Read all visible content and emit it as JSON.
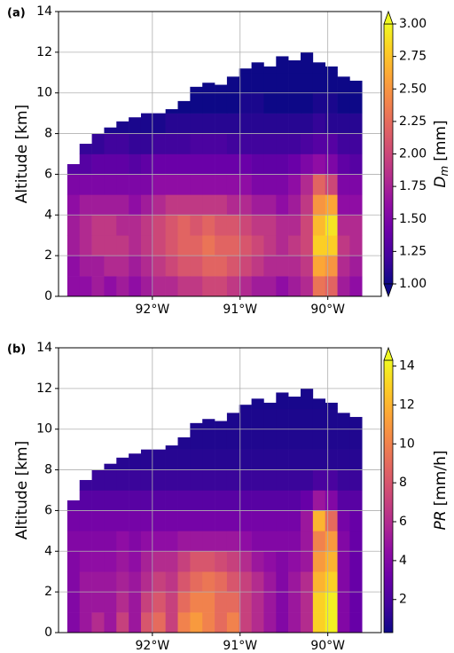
{
  "chart_data": [
    {
      "type": "heatmap",
      "panel_label": "(a)",
      "ylabel": "Altitude [km]",
      "x": [
        -92.9,
        -92.76,
        -92.62,
        -92.48,
        -92.34,
        -92.2,
        -92.06,
        -91.92,
        -91.78,
        -91.64,
        -91.5,
        -91.36,
        -91.22,
        -91.08,
        -90.94,
        -90.8,
        -90.66,
        -90.52,
        -90.38,
        -90.24,
        -90.1,
        -89.96,
        -89.82,
        -89.68
      ],
      "y": [
        0,
        1,
        2,
        3,
        4,
        5,
        6,
        7,
        8,
        9,
        10,
        11,
        12
      ],
      "tops": [
        6.5,
        7.5,
        8.0,
        8.3,
        8.6,
        8.8,
        9.0,
        9.0,
        9.2,
        9.6,
        10.3,
        10.5,
        10.4,
        10.8,
        11.2,
        11.5,
        11.3,
        11.8,
        11.6,
        12.0,
        11.5,
        11.3,
        10.8,
        10.6
      ],
      "z": [
        [
          1.6,
          1.6,
          1.7,
          1.7,
          1.6,
          1.5,
          1.3,
          null,
          null,
          null,
          null,
          null,
          null
        ],
        [
          1.6,
          1.7,
          1.8,
          1.8,
          1.7,
          1.5,
          1.3,
          1.15,
          null,
          null,
          null,
          null,
          null
        ],
        [
          1.7,
          1.7,
          1.9,
          1.9,
          1.7,
          1.5,
          1.35,
          1.15,
          null,
          null,
          null,
          null,
          null
        ],
        [
          1.6,
          1.8,
          1.9,
          1.9,
          1.7,
          1.5,
          1.35,
          1.2,
          1.05,
          null,
          null,
          null,
          null
        ],
        [
          1.7,
          1.8,
          1.9,
          1.8,
          1.7,
          1.5,
          1.35,
          1.2,
          1.05,
          null,
          null,
          null,
          null
        ],
        [
          1.6,
          1.7,
          1.8,
          1.8,
          1.6,
          1.5,
          1.3,
          1.15,
          1.05,
          null,
          null,
          null,
          null
        ],
        [
          1.7,
          1.8,
          1.9,
          1.9,
          1.7,
          1.5,
          1.35,
          1.15,
          1.05,
          null,
          null,
          null,
          null
        ],
        [
          1.8,
          1.9,
          2.0,
          2.0,
          1.8,
          1.6,
          1.4,
          1.2,
          1.05,
          null,
          null,
          null,
          null
        ],
        [
          1.8,
          2.0,
          2.1,
          2.1,
          1.9,
          1.6,
          1.4,
          1.2,
          1.1,
          1.0,
          null,
          null,
          null
        ],
        [
          1.9,
          2.1,
          2.2,
          2.2,
          1.9,
          1.6,
          1.4,
          1.2,
          1.1,
          1.0,
          null,
          null,
          null
        ],
        [
          1.9,
          2.1,
          2.2,
          2.1,
          1.9,
          1.6,
          1.4,
          1.25,
          1.1,
          1.0,
          1.0,
          null,
          null
        ],
        [
          2.0,
          2.2,
          2.3,
          2.2,
          1.9,
          1.6,
          1.4,
          1.25,
          1.1,
          1.0,
          1.0,
          null,
          null
        ],
        [
          2.0,
          2.2,
          2.2,
          2.1,
          1.9,
          1.6,
          1.4,
          1.25,
          1.1,
          1.0,
          1.0,
          null,
          null
        ],
        [
          1.9,
          2.1,
          2.2,
          2.1,
          1.8,
          1.6,
          1.4,
          1.2,
          1.1,
          1.0,
          1.0,
          null,
          null
        ],
        [
          1.8,
          2.0,
          2.1,
          2.0,
          1.8,
          1.6,
          1.4,
          1.2,
          1.1,
          1.05,
          1.0,
          1.0,
          null
        ],
        [
          1.7,
          1.9,
          2.0,
          1.9,
          1.7,
          1.5,
          1.35,
          1.2,
          1.1,
          1.05,
          1.0,
          1.0,
          null
        ],
        [
          1.7,
          1.8,
          1.9,
          1.9,
          1.7,
          1.5,
          1.35,
          1.2,
          1.1,
          1.0,
          1.0,
          1.0,
          null
        ],
        [
          1.6,
          1.8,
          1.8,
          1.8,
          1.6,
          1.5,
          1.35,
          1.2,
          1.1,
          1.0,
          1.0,
          1.0,
          null
        ],
        [
          1.7,
          1.8,
          1.9,
          1.8,
          1.7,
          1.6,
          1.4,
          1.2,
          1.1,
          1.0,
          1.0,
          1.0,
          null
        ],
        [
          1.8,
          1.9,
          2.0,
          2.0,
          1.9,
          1.8,
          1.5,
          1.25,
          1.1,
          1.0,
          1.0,
          1.0,
          null
        ],
        [
          2.3,
          2.6,
          2.8,
          2.7,
          2.5,
          2.2,
          1.6,
          1.3,
          1.15,
          1.05,
          1.0,
          1.0,
          null
        ],
        [
          2.2,
          2.5,
          2.8,
          2.9,
          2.6,
          2.0,
          1.5,
          1.3,
          1.1,
          1.05,
          1.0,
          1.0,
          null
        ],
        [
          1.7,
          1.8,
          1.9,
          1.8,
          1.6,
          1.5,
          1.35,
          1.2,
          1.1,
          1.0,
          1.0,
          null,
          null
        ],
        [
          1.6,
          1.7,
          1.8,
          1.8,
          1.6,
          1.5,
          1.3,
          1.2,
          1.1,
          1.0,
          1.0,
          null,
          null
        ]
      ],
      "xlim": [
        -93.07,
        -89.39
      ],
      "xticks": [
        {
          "value": -92,
          "label": "92°W"
        },
        {
          "value": -91,
          "label": "91°W"
        },
        {
          "value": -90,
          "label": "90°W"
        }
      ],
      "ylim": [
        0,
        14
      ],
      "yticks": [
        0,
        2,
        4,
        6,
        8,
        10,
        12,
        14
      ],
      "grid": true,
      "colormap": "plasma",
      "clim": [
        1,
        3
      ],
      "extend": "both",
      "colorbar_label": {
        "symbol": "D",
        "subscript": "m",
        "unit": "[mm]"
      },
      "colorbar_ticks": [
        {
          "value": 1,
          "label": "1.00"
        },
        {
          "value": 1.25,
          "label": "1.25"
        },
        {
          "value": 1.5,
          "label": "1.50"
        },
        {
          "value": 1.75,
          "label": "1.75"
        },
        {
          "value": 2,
          "label": "2.00"
        },
        {
          "value": 2.25,
          "label": "2.25"
        },
        {
          "value": 2.5,
          "label": "2.50"
        },
        {
          "value": 2.75,
          "label": "2.75"
        },
        {
          "value": 3,
          "label": "3.00"
        }
      ]
    },
    {
      "type": "heatmap",
      "panel_label": "(b)",
      "ylabel": "Altitude [km]",
      "x": [
        -92.9,
        -92.76,
        -92.62,
        -92.48,
        -92.34,
        -92.2,
        -92.06,
        -91.92,
        -91.78,
        -91.64,
        -91.5,
        -91.36,
        -91.22,
        -91.08,
        -90.94,
        -90.8,
        -90.66,
        -90.52,
        -90.38,
        -90.24,
        -90.1,
        -89.96,
        -89.82,
        -89.68
      ],
      "y": [
        0,
        1,
        2,
        3,
        4,
        5,
        6,
        7,
        8,
        9,
        10,
        11,
        12
      ],
      "tops": [
        6.5,
        7.5,
        8.0,
        8.3,
        8.6,
        8.8,
        9.0,
        9.0,
        9.2,
        9.6,
        10.3,
        10.5,
        10.4,
        10.8,
        11.2,
        11.5,
        11.3,
        11.8,
        11.6,
        12.0,
        11.5,
        11.3,
        10.8,
        10.6
      ],
      "z": [
        [
          4,
          4,
          4,
          4,
          4,
          3.5,
          2.5,
          null,
          null,
          null,
          null,
          null,
          null
        ],
        [
          5,
          5,
          5,
          4.5,
          4,
          3.5,
          2.5,
          1.5,
          null,
          null,
          null,
          null,
          null
        ],
        [
          6,
          5,
          5,
          4.5,
          4,
          3.5,
          2.5,
          1.5,
          null,
          null,
          null,
          null,
          null
        ],
        [
          5,
          5,
          5,
          4.5,
          4,
          3.5,
          2.5,
          1.5,
          1,
          null,
          null,
          null,
          null
        ],
        [
          7,
          6,
          5.5,
          5,
          4.5,
          3.5,
          2.5,
          1.5,
          1,
          null,
          null,
          null,
          null
        ],
        [
          5,
          5,
          5,
          4.5,
          4,
          3.5,
          2.5,
          1.5,
          1,
          null,
          null,
          null,
          null
        ],
        [
          8,
          7,
          6,
          5.5,
          4.5,
          3.5,
          2.5,
          1.5,
          1,
          null,
          null,
          null,
          null
        ],
        [
          9,
          8,
          7,
          6,
          4.5,
          3.5,
          2.5,
          1.5,
          1,
          null,
          null,
          null,
          null
        ],
        [
          7,
          7,
          6.5,
          6,
          4.5,
          3.5,
          2.5,
          1.5,
          1,
          0.8,
          null,
          null,
          null
        ],
        [
          10,
          9,
          8,
          7,
          5,
          3.5,
          2.5,
          1.5,
          1,
          0.8,
          null,
          null,
          null
        ],
        [
          11,
          10,
          9,
          8,
          5,
          3.5,
          2.5,
          1.5,
          1,
          0.8,
          0.7,
          null,
          null
        ],
        [
          10,
          10,
          9.5,
          8,
          5,
          3.5,
          2.5,
          1.5,
          1,
          0.8,
          0.7,
          null,
          null
        ],
        [
          9,
          9,
          9,
          7.5,
          5,
          3.5,
          2.5,
          1.5,
          1,
          0.8,
          0.7,
          null,
          null
        ],
        [
          10,
          9,
          8,
          7,
          5,
          3.5,
          2.5,
          1.5,
          1,
          0.8,
          0.7,
          null,
          null
        ],
        [
          7,
          7,
          7,
          6,
          4.5,
          3.5,
          2.5,
          1.5,
          1,
          0.8,
          0.7,
          0.6,
          null
        ],
        [
          6,
          6,
          6,
          5,
          4,
          3.5,
          2.5,
          1.5,
          1,
          0.8,
          0.7,
          0.6,
          null
        ],
        [
          5,
          5,
          5,
          4.5,
          4,
          3.5,
          2.5,
          1.5,
          1,
          0.8,
          0.7,
          0.6,
          null
        ],
        [
          4,
          4,
          4,
          4,
          4,
          3.5,
          2.5,
          1.5,
          1,
          0.8,
          0.7,
          0.6,
          null
        ],
        [
          5,
          5,
          5,
          4.5,
          4,
          3.5,
          2.5,
          1.5,
          1,
          0.8,
          0.7,
          0.6,
          null
        ],
        [
          6,
          6,
          6,
          5,
          5,
          5,
          3,
          1.5,
          1,
          0.8,
          0.7,
          0.6,
          null
        ],
        [
          13,
          13,
          12,
          11,
          10,
          12,
          5,
          2,
          1,
          0.8,
          0.7,
          0.6,
          null
        ],
        [
          14,
          14,
          13,
          12,
          11,
          9,
          4,
          2,
          1,
          0.8,
          0.7,
          0.6,
          null
        ],
        [
          4,
          4,
          4,
          4,
          4,
          3.5,
          2.5,
          1.5,
          1,
          0.8,
          0.7,
          null,
          null
        ],
        [
          3,
          3,
          3,
          3,
          3,
          3,
          2.5,
          1.5,
          1,
          0.8,
          0.7,
          null,
          null
        ]
      ],
      "xlim": [
        -93.07,
        -89.39
      ],
      "xticks": [
        {
          "value": -92,
          "label": "92°W"
        },
        {
          "value": -91,
          "label": "91°W"
        },
        {
          "value": -90,
          "label": "90°W"
        }
      ],
      "ylim": [
        0,
        14
      ],
      "yticks": [
        0,
        2,
        4,
        6,
        8,
        10,
        12,
        14
      ],
      "grid": true,
      "colormap": "plasma",
      "clim": [
        0.3,
        14.3
      ],
      "extend": "max",
      "colorbar_label": {
        "symbol": "PR",
        "unit": "[mm/h]"
      },
      "colorbar_ticks": [
        2,
        4,
        6,
        8,
        10,
        12,
        14
      ]
    }
  ]
}
